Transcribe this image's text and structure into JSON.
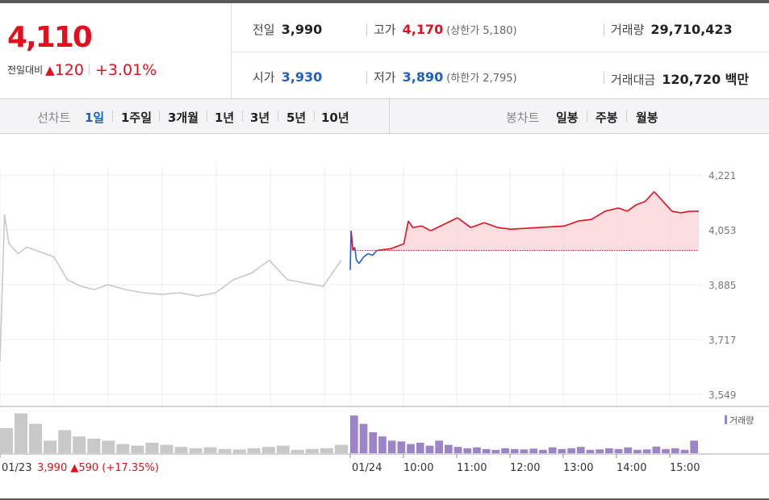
{
  "quote": {
    "price": "4,110",
    "change_label": "전일대비",
    "change_arrow": "▲",
    "change_value": "120",
    "change_rate": "+3.01%",
    "prev_close": {
      "label": "전일",
      "value": "3,990"
    },
    "open": {
      "label": "시가",
      "value": "3,930"
    },
    "high": {
      "label": "고가",
      "value": "4,170",
      "limit_text": "(상한가 5,180)"
    },
    "low": {
      "label": "저가",
      "value": "3,890",
      "limit_text": "(하한가 2,795)"
    },
    "volume": {
      "label": "거래량",
      "value": "29,710,423"
    },
    "trade_value": {
      "label": "거래대금",
      "value": "120,720 백만"
    }
  },
  "tabs": {
    "line_title": "선차트",
    "line_periods": [
      "1일",
      "1주일",
      "3개월",
      "1년",
      "3년",
      "5년",
      "10년"
    ],
    "active_period": "1일",
    "candle_title": "봉차트",
    "candle_periods": [
      "일봉",
      "주봉",
      "월봉"
    ]
  },
  "colors": {
    "up": "#e0101e",
    "down": "#1d60c8",
    "prev_day_line": "#c8c8c8",
    "volume_today": "#9b84c8",
    "volume_prev": "#c8c8c8"
  },
  "chart_data": {
    "type": "line",
    "y_ticks": [
      "4,221",
      "4,053",
      "3,885",
      "3,717",
      "3,549"
    ],
    "ylim": [
      3549,
      4221
    ],
    "reference_price": 3990,
    "x_tick_labels": [
      "01/23",
      "01/24",
      "10:00",
      "11:00",
      "12:00",
      "13:00",
      "14:00",
      "15:00"
    ],
    "prev_day_caption": {
      "date": "01/23",
      "close": "3,990",
      "arrow": "▲",
      "change": "590",
      "rate": "(+17.35%)"
    },
    "volume_legend": "거래량",
    "grid": true,
    "series": [
      {
        "day": "01/23",
        "times": [
          "09:00",
          "09:05",
          "09:10",
          "09:20",
          "09:30",
          "09:45",
          "10:00",
          "10:15",
          "10:30",
          "10:45",
          "11:00",
          "11:20",
          "11:40",
          "12:00",
          "12:20",
          "12:40",
          "13:00",
          "13:20",
          "13:40",
          "14:00",
          "14:20",
          "14:40",
          "15:00",
          "15:20"
        ],
        "values": [
          3650,
          4100,
          4010,
          3980,
          4000,
          3985,
          3970,
          3900,
          3880,
          3870,
          3885,
          3870,
          3860,
          3855,
          3860,
          3850,
          3860,
          3900,
          3920,
          3960,
          3900,
          3890,
          3880,
          3960
        ]
      },
      {
        "day": "01/24",
        "times": [
          "09:00",
          "09:01",
          "09:03",
          "09:05",
          "09:07",
          "09:10",
          "09:15",
          "09:20",
          "09:25",
          "09:30",
          "09:45",
          "10:00",
          "10:05",
          "10:10",
          "10:20",
          "10:30",
          "10:45",
          "11:00",
          "11:15",
          "11:30",
          "11:45",
          "12:00",
          "12:30",
          "13:00",
          "13:15",
          "13:30",
          "13:45",
          "14:00",
          "14:10",
          "14:20",
          "14:30",
          "14:40",
          "14:50",
          "15:00",
          "15:10",
          "15:20",
          "15:30"
        ],
        "values": [
          3930,
          4050,
          3990,
          4000,
          3960,
          3950,
          3970,
          3980,
          3975,
          3990,
          3995,
          4010,
          4080,
          4060,
          4065,
          4050,
          4070,
          4090,
          4060,
          4075,
          4060,
          4055,
          4060,
          4065,
          4080,
          4085,
          4110,
          4120,
          4110,
          4130,
          4140,
          4170,
          4140,
          4110,
          4105,
          4110,
          4110
        ]
      }
    ],
    "volume": {
      "prev_day": [
        60,
        95,
        70,
        30,
        55,
        40,
        35,
        30,
        22,
        18,
        25,
        20,
        15,
        12,
        14,
        10,
        9,
        12,
        15,
        18,
        8,
        10,
        12,
        20
      ],
      "today": [
        90,
        70,
        50,
        40,
        30,
        28,
        22,
        25,
        18,
        30,
        20,
        15,
        12,
        14,
        10,
        8,
        12,
        10,
        9,
        11,
        8,
        14,
        10,
        12,
        15,
        8,
        9,
        12,
        10,
        14,
        8,
        9,
        16,
        10,
        12,
        8,
        30
      ]
    }
  }
}
